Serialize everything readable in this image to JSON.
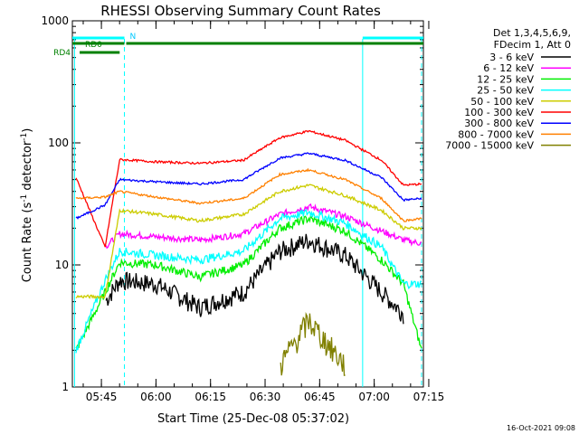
{
  "chart_data": {
    "type": "line",
    "title": "RHESSI Observing Summary Count Rates",
    "ylabel_main": "Count Rate (s",
    "ylabel_sup": "-1",
    "ylabel_rest": " detector",
    "ylabel_sup2": "-1",
    "ylabel_close": ")",
    "xlabel": "Start Time (25-Dec-08 05:37:02)",
    "yscale": "log",
    "ylim": [
      1,
      1000
    ],
    "xlim_minutes": [
      5.0,
      101.5
    ],
    "x_ticks": [
      {
        "t": 12.98,
        "label": "05:45"
      },
      {
        "t": 27.98,
        "label": "06:00"
      },
      {
        "t": 42.98,
        "label": "06:15"
      },
      {
        "t": 57.98,
        "label": "06:30"
      },
      {
        "t": 72.98,
        "label": "06:45"
      },
      {
        "t": 87.98,
        "label": "07:00"
      },
      {
        "t": 102.98,
        "label": "07:15"
      }
    ],
    "y_ticks": [
      {
        "v": 1,
        "label": "1"
      },
      {
        "v": 10,
        "label": "10"
      },
      {
        "v": 100,
        "label": "100"
      },
      {
        "v": 1000,
        "label": "1000"
      }
    ],
    "legend": {
      "header": [
        "Det 1,3,4,5,6,9,",
        "FDecim 1, Att 0"
      ],
      "placement": "right"
    },
    "series": [
      {
        "name": "3 - 6 keV",
        "color": "#000000",
        "values": [
          null,
          5,
          7.5,
          7,
          4.5,
          6,
          13,
          16,
          12,
          6,
          4,
          null
        ],
        "noise": 0.18
      },
      {
        "name": "6 - 12 keV",
        "color": "#ff00ff",
        "values": [
          null,
          14,
          18,
          17,
          16,
          18,
          26,
          30,
          25,
          19,
          16,
          15
        ],
        "noise": 0.06
      },
      {
        "name": "12 - 25 keV",
        "color": "#00ee00",
        "values": [
          2,
          6,
          10.5,
          10,
          8,
          10,
          20,
          24,
          19,
          11,
          7,
          2
        ],
        "noise": 0.08
      },
      {
        "name": "25 - 50 keV",
        "color": "#00ffff",
        "values": [
          2,
          7.5,
          13,
          12,
          11,
          13,
          24,
          27,
          22,
          14,
          7,
          7
        ],
        "noise": 0.08
      },
      {
        "name": "50 - 100 keV",
        "color": "#cccc00",
        "values": [
          5.5,
          5.5,
          28,
          26,
          23,
          26,
          40,
          45,
          37,
          28,
          20,
          20
        ],
        "noise": 0.03
      },
      {
        "name": "100 - 300 keV",
        "color": "#ff0000",
        "values": [
          52,
          14,
          73,
          70,
          68,
          72,
          110,
          125,
          105,
          72,
          45,
          46
        ],
        "noise": 0.02
      },
      {
        "name": "300 - 800 keV",
        "color": "#0000ff",
        "values": [
          24,
          31,
          50,
          48,
          46,
          50,
          75,
          82,
          72,
          52,
          34,
          35
        ],
        "noise": 0.02
      },
      {
        "name": "800 - 7000 keV",
        "color": "#ff8000",
        "values": [
          35,
          36,
          40,
          36,
          32,
          35,
          55,
          60,
          50,
          35,
          23,
          24
        ],
        "noise": 0.02
      },
      {
        "name": "7000 - 15000 keV",
        "color": "#808000",
        "values": [
          null,
          null,
          null,
          null,
          null,
          null,
          1.5,
          3.5,
          1.5,
          null,
          null,
          null
        ],
        "noise": 0.25
      }
    ],
    "series_x_minutes": [
      6,
      14,
      18,
      28,
      40,
      52,
      62,
      70,
      80,
      90,
      96,
      101
    ],
    "annotations": {
      "rd0_label": "RD0",
      "rd4_label": "RD4",
      "n_label": "N",
      "intervals_n": [
        [
          5.0,
          19.3
        ],
        [
          84.8,
          101.5
        ]
      ],
      "intervals_rd0": [
        [
          5.0,
          19.3
        ],
        [
          19.8,
          101.5
        ]
      ],
      "intervals_rd4": [
        [
          7.0,
          18.0
        ]
      ],
      "solid_markers": [
        5.6,
        84.8
      ],
      "dashed_markers": [
        19.3,
        101.0
      ]
    },
    "timestamp": "16-Oct-2021 09:08"
  }
}
